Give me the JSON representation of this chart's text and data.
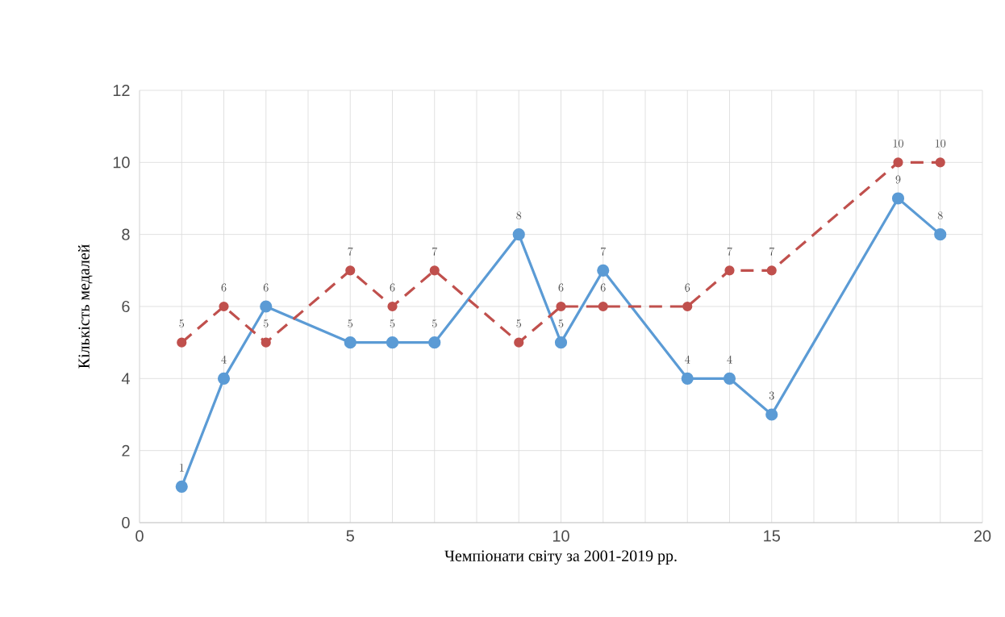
{
  "chart_data": {
    "type": "line",
    "xlabel": "Чемпіонати світу за 2001-2019 рр.",
    "ylabel": "Кількість  медалей",
    "x": [
      1,
      2,
      3,
      5,
      6,
      7,
      9,
      10,
      11,
      13,
      14,
      15,
      18,
      19
    ],
    "series": [
      {
        "color": "#5b9bd5",
        "values": [
          1,
          4,
          6,
          5,
          5,
          5,
          8,
          5,
          7,
          4,
          4,
          3,
          9,
          8
        ],
        "line_style": "solid"
      },
      {
        "color": "#c0504d",
        "values": [
          5,
          6,
          5,
          7,
          6,
          7,
          5,
          6,
          6,
          6,
          7,
          7,
          10,
          10
        ],
        "line_style": "dashed"
      }
    ],
    "xlim": [
      0,
      20
    ],
    "ylim": [
      0,
      12
    ],
    "xticks": [
      0,
      {
        "value": 1,
        "label": null
      },
      {
        "value": 2,
        "label": null
      },
      {
        "value": 3,
        "label": null
      },
      {
        "value": 4,
        "label": null
      },
      5,
      {
        "value": 6,
        "label": null
      },
      {
        "value": 7,
        "label": null
      },
      {
        "value": 8,
        "label": null
      },
      {
        "value": 9,
        "label": null
      },
      10,
      {
        "value": 11,
        "label": null
      },
      {
        "value": 12,
        "label": null
      },
      {
        "value": 13,
        "label": null
      },
      {
        "value": 14,
        "label": null
      },
      15,
      {
        "value": 16,
        "label": null
      },
      {
        "value": 17,
        "label": null
      },
      {
        "value": 18,
        "label": null
      },
      {
        "value": 19,
        "label": null
      },
      20
    ],
    "yticks": [
      0,
      2,
      4,
      6,
      8,
      10,
      12
    ],
    "grid": true,
    "marker": "circle",
    "data_labels": true
  }
}
